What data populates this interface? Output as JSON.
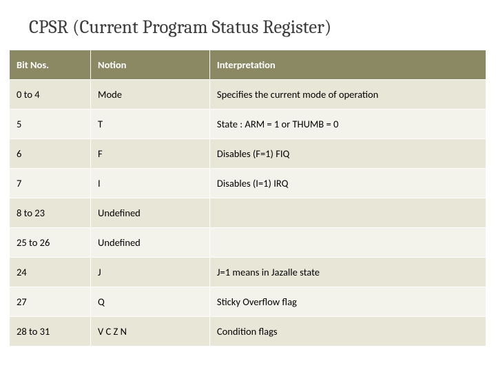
{
  "title": "CPSR (Current Program Status Register)",
  "table": {
    "header_bg": "#8a8964",
    "header_fg": "#ffffff",
    "row_odd_bg": "#e8e6d6",
    "row_even_bg": "#f4f3eb",
    "columns": [
      "Bit Nos.",
      "Notion",
      "Interpretation"
    ],
    "column_widths_pct": [
      17,
      25,
      58
    ],
    "rows": [
      [
        "0 to 4",
        "Mode",
        "Specifies the current mode of operation"
      ],
      [
        "5",
        "T",
        "State : ARM = 1 or THUMB = 0"
      ],
      [
        "6",
        "F",
        "Disables (F=1) FIQ"
      ],
      [
        "7",
        "I",
        "Disables (I=1) IRQ"
      ],
      [
        "8 to 23",
        "Undefined",
        ""
      ],
      [
        "25 to 26",
        "Undefined",
        ""
      ],
      [
        "24",
        "J",
        "J=1 means in Jazalle state"
      ],
      [
        "27",
        "Q",
        "Sticky Overflow flag"
      ],
      [
        "28 to 31",
        "V C Z N",
        "Condition flags"
      ]
    ]
  }
}
